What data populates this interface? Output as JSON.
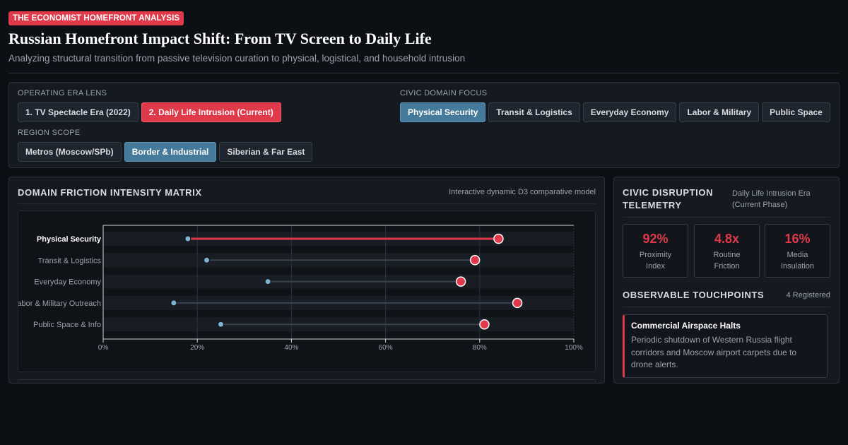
{
  "header": {
    "tag": "THE ECONOMIST HOMEFRONT ANALYSIS",
    "title": "Russian Homefront Impact Shift: From TV Screen to Daily Life",
    "subtitle": "Analyzing structural transition from passive television curation to physical, logistical, and household intrusion"
  },
  "controls": {
    "era": {
      "label": "OPERATING ERA LENS",
      "options": [
        "1. TV Spectacle Era (2022)",
        "2. Daily Life Intrusion (Current)"
      ],
      "selected": "2. Daily Life Intrusion (Current)"
    },
    "domain": {
      "label": "CIVIC DOMAIN FOCUS",
      "options": [
        "Physical Security",
        "Transit & Logistics",
        "Everyday Economy",
        "Labor & Military",
        "Public Space"
      ],
      "selected": "Physical Security"
    },
    "region": {
      "label": "REGION SCOPE",
      "options": [
        "Metros (Moscow/SPb)",
        "Border & Industrial",
        "Siberian & Far East"
      ],
      "selected": "Border & Industrial"
    }
  },
  "matrix": {
    "title": "DOMAIN FRICTION INTENSITY MATRIX",
    "note": "Interactive dynamic D3 comparative model"
  },
  "chart_data": {
    "type": "dumbbell",
    "categories": [
      "Physical Security",
      "Transit & Logistics",
      "Everyday Economy",
      "Labor & Military Outreach",
      "Public Space & Info"
    ],
    "highlighted": "Physical Security",
    "series": [
      {
        "values": [
          18,
          22,
          35,
          15,
          25
        ],
        "color": "#7fb4d3"
      },
      {
        "values": [
          84,
          79,
          76,
          88,
          81
        ],
        "color": "#e0394a"
      }
    ],
    "xlim": [
      0,
      100
    ],
    "xticks": [
      "0%",
      "20%",
      "40%",
      "60%",
      "80%",
      "100%"
    ],
    "xtick_values": [
      0,
      20,
      40,
      60,
      80,
      100
    ],
    "grid": true
  },
  "telemetry": {
    "title_line1": "CIVIC DISRUPTION",
    "title_line2": "TELEMETRY",
    "era_line1": "Daily Life Intrusion Era",
    "era_line2": "(Current Phase)",
    "stats": [
      {
        "value": "92%",
        "label_line1": "Proximity",
        "label_line2": "Index"
      },
      {
        "value": "4.8x",
        "label_line1": "Routine",
        "label_line2": "Friction"
      },
      {
        "value": "16%",
        "label_line1": "Media",
        "label_line2": "Insulation"
      }
    ],
    "touchpoints_title": "OBSERVABLE TOUCHPOINTS",
    "touchpoints_count": "4 Registered",
    "cards": [
      {
        "title": "Commercial Airspace Halts",
        "body": "Periodic shutdown of Western Russia flight corridors and Moscow airport carpets due to drone alerts."
      }
    ]
  },
  "colors": {
    "accent_red": "#e0394a",
    "accent_blue": "#467a9a",
    "baseline_marker": "#7fb4d3"
  }
}
